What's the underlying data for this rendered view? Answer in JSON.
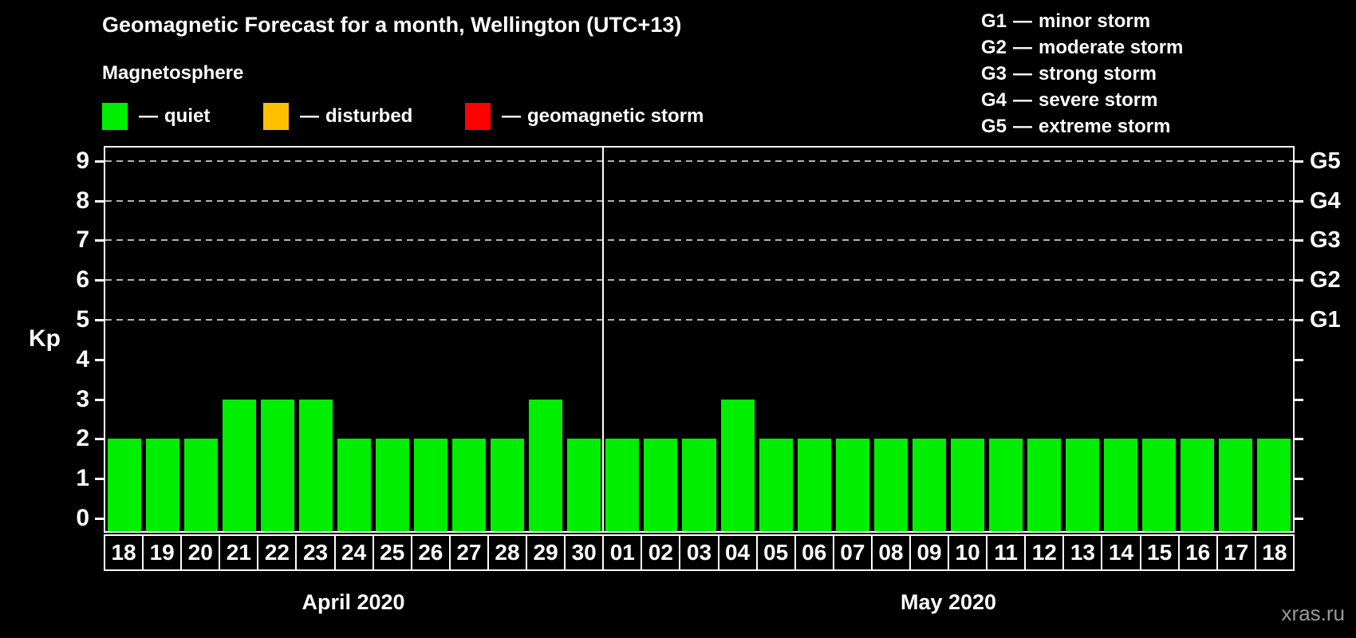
{
  "title": "Geomagnetic Forecast for a month, Wellington (UTC+13)",
  "subtitle": "Magnetosphere",
  "dash": "—",
  "legend": [
    {
      "label": "quiet",
      "color": "#00ee00"
    },
    {
      "label": "disturbed",
      "color": "#ffc000"
    },
    {
      "label": "geomagnetic storm",
      "color": "#ff0000"
    }
  ],
  "storm_scale": [
    {
      "level": "G1",
      "desc": "minor storm"
    },
    {
      "level": "G2",
      "desc": "moderate storm"
    },
    {
      "level": "G3",
      "desc": "strong storm"
    },
    {
      "level": "G4",
      "desc": "severe storm"
    },
    {
      "level": "G5",
      "desc": "extreme storm"
    }
  ],
  "watermark": "xras.ru",
  "chart_data": {
    "type": "bar",
    "title": "Geomagnetic Forecast for a month, Wellington (UTC+13)",
    "ylabel": "Kp",
    "ylim": [
      0,
      9
    ],
    "yticks_left": [
      0,
      1,
      2,
      3,
      4,
      5,
      6,
      7,
      8,
      9
    ],
    "yticks_right": [
      {
        "kp": 5,
        "label": "G1"
      },
      {
        "kp": 6,
        "label": "G2"
      },
      {
        "kp": 7,
        "label": "G3"
      },
      {
        "kp": 8,
        "label": "G4"
      },
      {
        "kp": 9,
        "label": "G5"
      }
    ],
    "gridlines_kp": [
      5,
      6,
      7,
      8,
      9
    ],
    "grid": true,
    "legend_position": "top",
    "bar_status_all": "quiet",
    "bar_color": "#00ee00",
    "months": [
      {
        "label": "April 2020",
        "days": [
          "18",
          "19",
          "20",
          "21",
          "22",
          "23",
          "24",
          "25",
          "26",
          "27",
          "28",
          "29",
          "30"
        ],
        "values": [
          2,
          2,
          2,
          3,
          3,
          3,
          2,
          2,
          2,
          2,
          2,
          3,
          2
        ]
      },
      {
        "label": "May 2020",
        "days": [
          "01",
          "02",
          "03",
          "04",
          "05",
          "06",
          "07",
          "08",
          "09",
          "10",
          "11",
          "12",
          "13",
          "14",
          "15",
          "16",
          "17",
          "18"
        ],
        "values": [
          2,
          2,
          2,
          3,
          2,
          2,
          2,
          2,
          2,
          2,
          2,
          2,
          2,
          2,
          2,
          2,
          2,
          2
        ]
      }
    ]
  }
}
